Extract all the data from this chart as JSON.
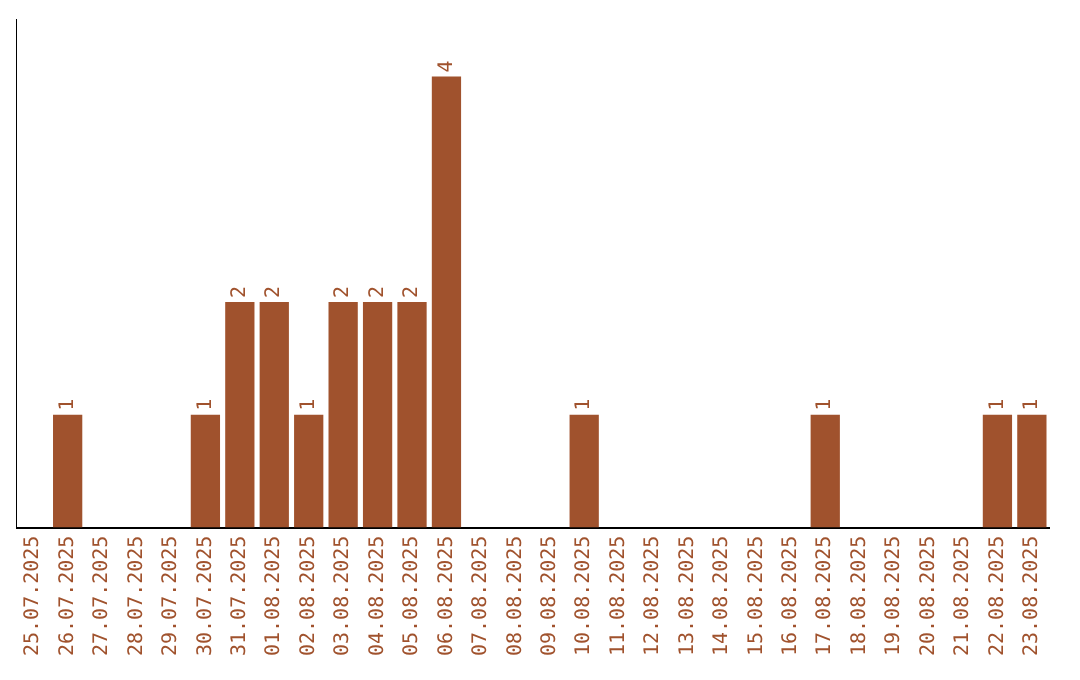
{
  "chart_data": {
    "type": "bar",
    "categories": [
      "25.07.2025",
      "26.07.2025",
      "27.07.2025",
      "28.07.2025",
      "29.07.2025",
      "30.07.2025",
      "31.07.2025",
      "01.08.2025",
      "02.08.2025",
      "03.08.2025",
      "04.08.2025",
      "05.08.2025",
      "06.08.2025",
      "07.08.2025",
      "08.08.2025",
      "09.08.2025",
      "10.08.2025",
      "11.08.2025",
      "12.08.2025",
      "13.08.2025",
      "14.08.2025",
      "15.08.2025",
      "16.08.2025",
      "17.08.2025",
      "18.08.2025",
      "19.08.2025",
      "20.08.2025",
      "21.08.2025",
      "22.08.2025",
      "23.08.2025"
    ],
    "values": [
      null,
      1,
      null,
      null,
      null,
      1,
      2,
      2,
      1,
      2,
      2,
      2,
      4,
      null,
      null,
      null,
      1,
      null,
      null,
      null,
      null,
      null,
      null,
      1,
      null,
      null,
      null,
      null,
      1,
      1
    ],
    "color": "#a0522d",
    "data_labels": true,
    "grid": false,
    "legend": false,
    "tick_labels": "x"
  }
}
